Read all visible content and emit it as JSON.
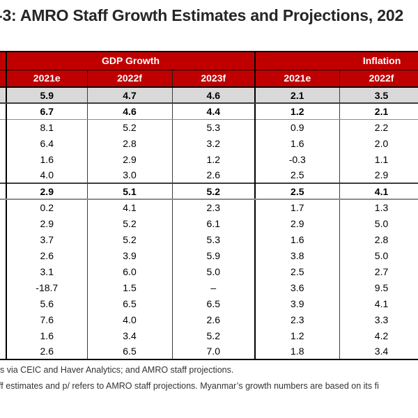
{
  "title": "-3: AMRO Staff Growth Estimates and Projections, 202",
  "colors": {
    "header_bg": "#C00000",
    "header_text": "#FFFFFF",
    "shaded_row_bg": "#D9D9D9"
  },
  "table": {
    "group_headers": {
      "gdp": "GDP Growth",
      "inflation": "Inflation"
    },
    "gdp_columns": [
      "2021e",
      "2022f",
      "2023f"
    ],
    "inflation_columns": [
      "2021e",
      "2022f"
    ],
    "rows": [
      {
        "type": "asean3",
        "gdp": [
          "5.9",
          "4.7",
          "4.6"
        ],
        "inflation": [
          "2.1",
          "3.5"
        ]
      },
      {
        "type": "plus3",
        "gdp": [
          "6.7",
          "4.6",
          "4.4"
        ],
        "inflation": [
          "1.2",
          "2.1"
        ]
      },
      {
        "type": "member",
        "gdp": [
          "8.1",
          "5.2",
          "5.3"
        ],
        "inflation": [
          "0.9",
          "2.2"
        ]
      },
      {
        "type": "member",
        "gdp": [
          "6.4",
          "2.8",
          "3.2"
        ],
        "inflation": [
          "1.6",
          "2.0"
        ]
      },
      {
        "type": "member",
        "gdp": [
          "1.6",
          "2.9",
          "1.2"
        ],
        "inflation": [
          "-0.3",
          "1.1"
        ]
      },
      {
        "type": "member",
        "gdp": [
          "4.0",
          "3.0",
          "2.6"
        ],
        "inflation": [
          "2.5",
          "2.9"
        ]
      },
      {
        "type": "asean",
        "gdp": [
          "2.9",
          "5.1",
          "5.2"
        ],
        "inflation": [
          "2.5",
          "4.1"
        ]
      },
      {
        "type": "member",
        "gdp": [
          "0.2",
          "4.1",
          "2.3"
        ],
        "inflation": [
          "1.7",
          "1.3"
        ]
      },
      {
        "type": "member",
        "gdp": [
          "2.9",
          "5.2",
          "6.1"
        ],
        "inflation": [
          "2.9",
          "5.0"
        ]
      },
      {
        "type": "member",
        "gdp": [
          "3.7",
          "5.2",
          "5.3"
        ],
        "inflation": [
          "1.6",
          "2.8"
        ]
      },
      {
        "type": "member",
        "gdp": [
          "2.6",
          "3.9",
          "5.9"
        ],
        "inflation": [
          "3.8",
          "5.0"
        ]
      },
      {
        "type": "member",
        "gdp": [
          "3.1",
          "6.0",
          "5.0"
        ],
        "inflation": [
          "2.5",
          "2.7"
        ]
      },
      {
        "type": "member",
        "gdp": [
          "-18.7",
          "1.5",
          "–"
        ],
        "inflation": [
          "3.6",
          "9.5"
        ]
      },
      {
        "type": "member",
        "gdp": [
          "5.6",
          "6.5",
          "6.5"
        ],
        "inflation": [
          "3.9",
          "4.1"
        ]
      },
      {
        "type": "member",
        "gdp": [
          "7.6",
          "4.0",
          "2.6"
        ],
        "inflation": [
          "2.3",
          "3.3"
        ]
      },
      {
        "type": "member",
        "gdp": [
          "1.6",
          "3.4",
          "5.2"
        ],
        "inflation": [
          "1.2",
          "4.2"
        ]
      },
      {
        "type": "member",
        "gdp": [
          "2.6",
          "6.5",
          "7.0"
        ],
        "inflation": [
          "1.8",
          "3.4"
        ]
      }
    ]
  },
  "footnotes": [
    "s via CEIC and Haver Analytics; and AMRO staff projections.",
    "ff estimates and p/ refers to AMRO staff projections. Myanmar’s growth numbers are based on its fi"
  ]
}
